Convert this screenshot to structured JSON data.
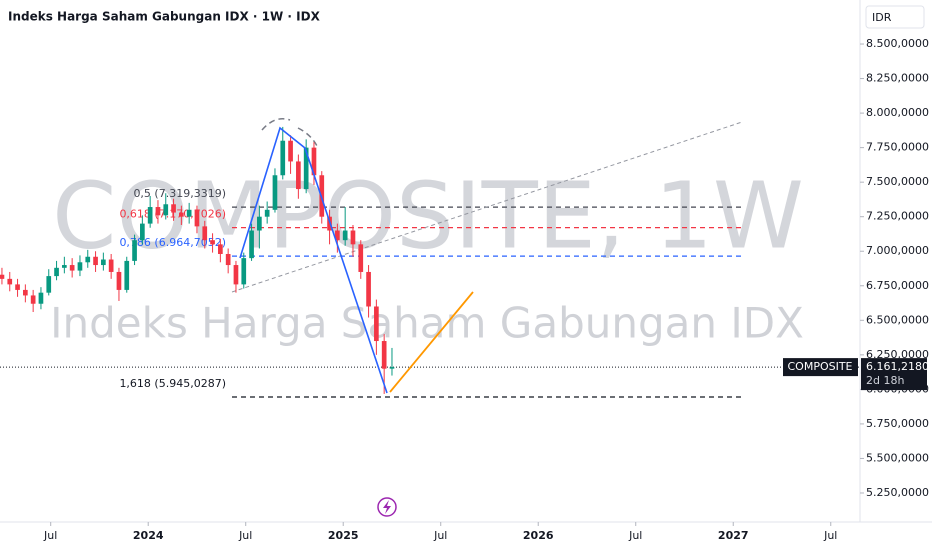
{
  "chart_data": {
    "type": "candlestick",
    "title": "Indeks Harga Saham Gabungan IDX · 1W · IDX",
    "watermark": "COMPOSITE, 1W",
    "watermark_subtitle": "Indeks Harga Saham Gabungan IDX",
    "currency": "IDR",
    "symbol": "COMPOSITE",
    "countdown": "2d 18h",
    "up_color": "#089981",
    "down_color": "#f23645",
    "x": [
      2023.25,
      2023.29,
      2023.33,
      2023.37,
      2023.41,
      2023.45,
      2023.49,
      2023.53,
      2023.57,
      2023.61,
      2023.65,
      2023.69,
      2023.73,
      2023.77,
      2023.81,
      2023.85,
      2023.89,
      2023.93,
      2023.97,
      2024.01,
      2024.05,
      2024.09,
      2024.13,
      2024.17,
      2024.21,
      2024.25,
      2024.29,
      2024.33,
      2024.37,
      2024.41,
      2024.45,
      2024.49,
      2024.53,
      2024.57,
      2024.61,
      2024.65,
      2024.69,
      2024.73,
      2024.77,
      2024.81,
      2024.85,
      2024.89,
      2024.93,
      2024.97,
      2025.01,
      2025.05,
      2025.09,
      2025.13,
      2025.17,
      2025.21,
      2025.25
    ],
    "open": [
      6830,
      6800,
      6760,
      6720,
      6680,
      6620,
      6700,
      6820,
      6880,
      6900,
      6860,
      6920,
      6960,
      6900,
      6940,
      6850,
      6720,
      6930,
      7080,
      7200,
      7320,
      7260,
      7340,
      7280,
      7250,
      7300,
      7180,
      7080,
      7050,
      6980,
      6900,
      6760,
      6950,
      7150,
      7250,
      7300,
      7550,
      7800,
      7650,
      7450,
      7750,
      7550,
      7250,
      7150,
      7080,
      7150,
      7050,
      6850,
      6600,
      6350,
      6150
    ],
    "high": [
      6880,
      6850,
      6800,
      6760,
      6720,
      6740,
      6870,
      6930,
      6960,
      6950,
      6970,
      7010,
      7000,
      6990,
      6980,
      6880,
      6960,
      7120,
      7260,
      7400,
      7370,
      7420,
      7380,
      7330,
      7350,
      7330,
      7220,
      7130,
      7090,
      7020,
      6930,
      6990,
      7200,
      7330,
      7360,
      7600,
      7900,
      7840,
      7700,
      7810,
      7790,
      7580,
      7300,
      7200,
      7320,
      7190,
      7080,
      6900,
      6650,
      6400,
      6300
    ],
    "low": [
      6760,
      6710,
      6670,
      6630,
      6560,
      6580,
      6680,
      6790,
      6840,
      6810,
      6820,
      6880,
      6850,
      6860,
      6800,
      6640,
      6700,
      6900,
      7050,
      7170,
      7200,
      7230,
      7220,
      7190,
      7200,
      7130,
      7020,
      6990,
      6920,
      6840,
      6700,
      6730,
      6930,
      7020,
      7200,
      7280,
      7520,
      7560,
      7380,
      7420,
      7480,
      7200,
      7050,
      6990,
      7040,
      6960,
      6800,
      6520,
      6250,
      5967,
      6100
    ],
    "close": [
      6800,
      6760,
      6720,
      6680,
      6620,
      6700,
      6820,
      6880,
      6900,
      6860,
      6920,
      6960,
      6900,
      6940,
      6850,
      6720,
      6930,
      7080,
      7200,
      7320,
      7260,
      7340,
      7280,
      7250,
      7300,
      7180,
      7080,
      7050,
      6980,
      6900,
      6760,
      6950,
      7150,
      7250,
      7300,
      7550,
      7800,
      7650,
      7450,
      7750,
      7550,
      7250,
      7150,
      7080,
      7150,
      7050,
      6850,
      6600,
      6350,
      6150,
      6161
    ],
    "last_price": {
      "value": 6161.218,
      "label": "6.161,2180"
    },
    "fib_levels": [
      {
        "value": 7319.3319,
        "label": "0,5 (7.319,3319)",
        "color": "#434651"
      },
      {
        "value": 7170.7026,
        "label": "0,618 (7.170,7026)",
        "color": "#f23645"
      },
      {
        "value": 6964.7052,
        "label": "0,786 (6.964,7052)",
        "color": "#2962ff"
      },
      {
        "value": 5945.0287,
        "label": "1,618 (5.945,0287)",
        "color": "#131722"
      }
    ],
    "xlim": [
      2023.24,
      2027.65
    ],
    "xticks": [
      {
        "value": 2023.5,
        "label": "Jul"
      },
      2024,
      {
        "value": 2024.5,
        "label": "Jul"
      },
      2025,
      {
        "value": 2025.5,
        "label": "Jul"
      },
      2026,
      {
        "value": 2026.5,
        "label": "Jul"
      },
      2027,
      {
        "value": 2027.5,
        "label": "Jul"
      }
    ],
    "ylim": [
      5100,
      8700
    ],
    "yticks": [
      {
        "value": 8500,
        "label": "8.500,0000"
      },
      {
        "value": 8250,
        "label": "8.250,0000"
      },
      {
        "value": 8000,
        "label": "8.000,0000"
      },
      {
        "value": 7750,
        "label": "7.750,0000"
      },
      {
        "value": 7500,
        "label": "7.500,0000"
      },
      {
        "value": 7250,
        "label": "7.250,0000"
      },
      {
        "value": 7000,
        "label": "7.000,0000"
      },
      {
        "value": 6750,
        "label": "6.750,0000"
      },
      {
        "value": 6500,
        "label": "6.500,0000"
      },
      {
        "value": 6250,
        "label": "6.250,0000"
      },
      {
        "value": 6000,
        "label": "6.000,0000"
      },
      {
        "value": 5750,
        "label": "5.750,0000"
      },
      {
        "value": 5500,
        "label": "5.500,0000"
      },
      {
        "value": 5250,
        "label": "5.250,0000"
      }
    ]
  }
}
